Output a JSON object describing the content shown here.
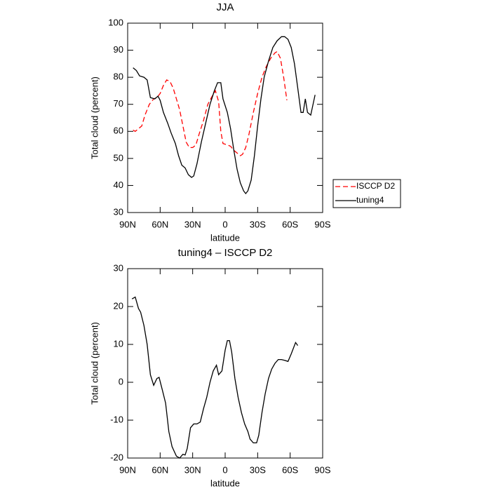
{
  "chart_data": [
    {
      "type": "line",
      "title": "JJA",
      "xlabel": "latitude",
      "ylabel": "Total cloud (percent)",
      "xlim": [
        90,
        -90
      ],
      "xticks": [
        {
          "value": 90,
          "label": "90N"
        },
        {
          "value": 60,
          "label": "60N"
        },
        {
          "value": 30,
          "label": "30N"
        },
        0,
        {
          "value": -30,
          "label": "30S"
        },
        {
          "value": -60,
          "label": "60S"
        },
        {
          "value": -90,
          "label": "90S"
        }
      ],
      "ylim": [
        30,
        100
      ],
      "yticks": [
        30,
        40,
        50,
        60,
        70,
        80,
        90,
        100
      ],
      "series": [
        {
          "name": "ISCCP D2",
          "color": "#ff0000",
          "linestyle": "dashed",
          "x": [
            85,
            83,
            80,
            77,
            74,
            70,
            66,
            63,
            60,
            57,
            54,
            51,
            48,
            45,
            42,
            39,
            36,
            33,
            30,
            27,
            24,
            20,
            16,
            12,
            9,
            6,
            4,
            2,
            -2,
            -5,
            -8,
            -11,
            -14,
            -16,
            -19,
            -22,
            -26,
            -30,
            -34,
            -38,
            -42,
            -46,
            -48,
            -51,
            -54,
            -57
          ],
          "values": [
            60.5,
            60,
            61,
            62,
            66,
            70,
            72,
            72.5,
            74,
            77,
            79,
            78.5,
            76,
            72,
            68,
            62,
            56,
            54,
            54,
            55,
            59,
            64,
            70,
            73,
            75,
            71,
            60,
            55.5,
            55,
            54.5,
            53,
            52,
            51,
            51.5,
            54,
            59,
            67,
            74,
            80,
            84,
            87,
            89,
            89.5,
            87,
            80,
            71.5
          ]
        },
        {
          "name": "tuning4",
          "color": "#000000",
          "linestyle": "solid",
          "x": [
            85,
            82,
            79,
            75,
            72,
            69,
            65,
            62,
            60,
            57,
            53,
            50,
            46,
            43,
            40,
            37,
            34,
            31,
            29,
            26,
            22,
            18,
            14,
            10,
            7,
            4,
            2,
            -2,
            -5,
            -8,
            -11,
            -14,
            -17,
            -19,
            -21,
            -24,
            -27,
            -30,
            -33,
            -36,
            -40,
            -44,
            -48,
            -52,
            -55,
            -58,
            -61,
            -64,
            -67,
            -70,
            -72,
            -74,
            -76,
            -79,
            -83
          ],
          "values": [
            83.5,
            82.5,
            80.5,
            80,
            79,
            72.5,
            72,
            73,
            71.5,
            67,
            63,
            59.5,
            55.5,
            51,
            47.5,
            46.5,
            44,
            43,
            43.5,
            48,
            56,
            63,
            70,
            75,
            78,
            78,
            72,
            67,
            61,
            53,
            46,
            41,
            38,
            37,
            38,
            42,
            51,
            62,
            72,
            80,
            86,
            91,
            93.5,
            95,
            95,
            94,
            91,
            85,
            76,
            67,
            67,
            72,
            67,
            66,
            73.5
          ]
        }
      ]
    },
    {
      "type": "line",
      "title": "tuning4 – ISCCP D2",
      "xlabel": "latitude",
      "ylabel": "Total cloud (percent)",
      "xlim": [
        90,
        -90
      ],
      "xticks": [
        {
          "value": 90,
          "label": "90N"
        },
        {
          "value": 60,
          "label": "60N"
        },
        {
          "value": 30,
          "label": "30N"
        },
        0,
        {
          "value": -30,
          "label": "30S"
        },
        {
          "value": -60,
          "label": "60S"
        },
        {
          "value": -90,
          "label": "90S"
        }
      ],
      "ylim": [
        -20,
        30
      ],
      "yticks": [
        -20,
        -10,
        0,
        10,
        20,
        30
      ],
      "color": "#000000",
      "x": [
        86,
        83,
        80,
        78,
        75,
        72,
        69,
        66,
        63,
        61,
        58,
        55,
        52,
        49,
        45,
        42,
        39,
        37,
        35,
        32,
        29,
        26,
        23,
        20,
        17,
        14,
        11,
        8,
        6,
        3,
        0,
        -2,
        -4,
        -6,
        -9,
        -12,
        -15,
        -18,
        -21,
        -23,
        -26,
        -29,
        -31,
        -34,
        -37,
        -40,
        -43,
        -46,
        -49,
        -52,
        -55,
        -58,
        -61,
        -65,
        -67
      ],
      "values": [
        22,
        22.5,
        19.5,
        18.5,
        15,
        10,
        2,
        -0.8,
        1,
        1.3,
        -2,
        -5.5,
        -13,
        -17,
        -19.5,
        -20,
        -19,
        -19.2,
        -17.5,
        -12,
        -11,
        -11,
        -10.5,
        -7,
        -4,
        0,
        3,
        4.5,
        2,
        3,
        8.5,
        11,
        11,
        8,
        1,
        -4,
        -8,
        -11,
        -13,
        -15,
        -16,
        -16,
        -14,
        -8,
        -3,
        1,
        3.5,
        5,
        6,
        6,
        5.8,
        5.5,
        7.5,
        10.5,
        9.7
      ]
    }
  ]
}
